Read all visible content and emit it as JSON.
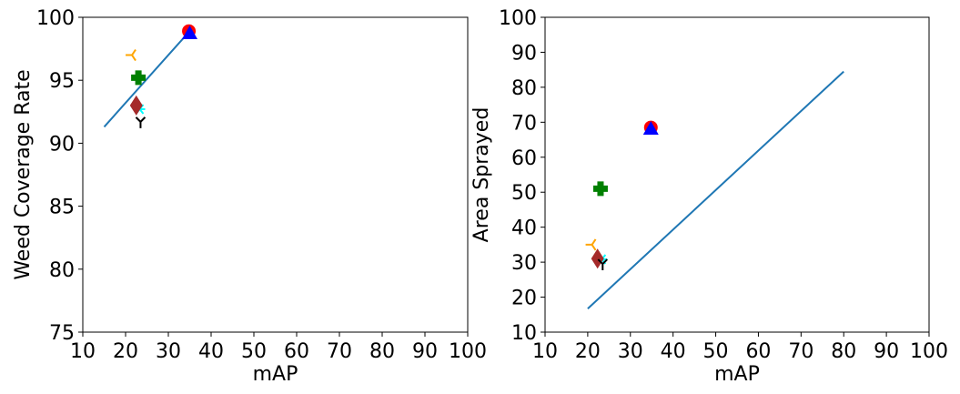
{
  "chart_data": [
    {
      "type": "scatter",
      "xlabel": "mAP",
      "ylabel": "Weed Coverage Rate",
      "xlim": [
        10,
        100
      ],
      "ylim": [
        75,
        100
      ],
      "xticks": [
        "10",
        "20",
        "30",
        "40",
        "50",
        "60",
        "70",
        "80",
        "90",
        "100"
      ],
      "yticks": [
        "75",
        "80",
        "85",
        "90",
        "95",
        "100"
      ],
      "grid": false,
      "line": {
        "color": "#1f77b4",
        "x": [
          15,
          35
        ],
        "y": [
          91.3,
          98.9
        ]
      },
      "points": [
        {
          "x": 34.8,
          "y": 98.9,
          "marker": "circle",
          "color": "#ff0000"
        },
        {
          "x": 35.0,
          "y": 98.7,
          "marker": "triangle",
          "color": "#0000ff"
        },
        {
          "x": 21.5,
          "y": 97.0,
          "marker": "tri-left",
          "color": "#ffa500"
        },
        {
          "x": 23.0,
          "y": 95.2,
          "marker": "plus",
          "color": "#008000"
        },
        {
          "x": 23.3,
          "y": 92.7,
          "marker": "star",
          "color": "#00ffff"
        },
        {
          "x": 22.5,
          "y": 93.0,
          "marker": "diamond",
          "color": "#a52a2a"
        },
        {
          "x": 23.5,
          "y": 91.7,
          "marker": "tri-up",
          "color": "#000000"
        }
      ]
    },
    {
      "type": "scatter",
      "xlabel": "mAP",
      "ylabel": "Area Sprayed",
      "xlim": [
        10,
        100
      ],
      "ylim": [
        10,
        100
      ],
      "xticks": [
        "10",
        "20",
        "30",
        "40",
        "50",
        "60",
        "70",
        "80",
        "90",
        "100"
      ],
      "yticks": [
        "10",
        "20",
        "30",
        "40",
        "50",
        "60",
        "70",
        "80",
        "90",
        "100"
      ],
      "grid": false,
      "line": {
        "color": "#1f77b4",
        "x": [
          20,
          80
        ],
        "y": [
          16.7,
          84.5
        ]
      },
      "points": [
        {
          "x": 34.8,
          "y": 68.5,
          "marker": "circle",
          "color": "#ff0000"
        },
        {
          "x": 34.8,
          "y": 68.0,
          "marker": "triangle",
          "color": "#0000ff"
        },
        {
          "x": 21.0,
          "y": 35.0,
          "marker": "tri-left",
          "color": "#ffa500"
        },
        {
          "x": 23.0,
          "y": 51.0,
          "marker": "plus",
          "color": "#008000"
        },
        {
          "x": 23.3,
          "y": 30.8,
          "marker": "star",
          "color": "#00ffff"
        },
        {
          "x": 22.3,
          "y": 31.0,
          "marker": "diamond",
          "color": "#a52a2a"
        },
        {
          "x": 23.5,
          "y": 29.5,
          "marker": "tri-up",
          "color": "#000000"
        }
      ]
    }
  ]
}
